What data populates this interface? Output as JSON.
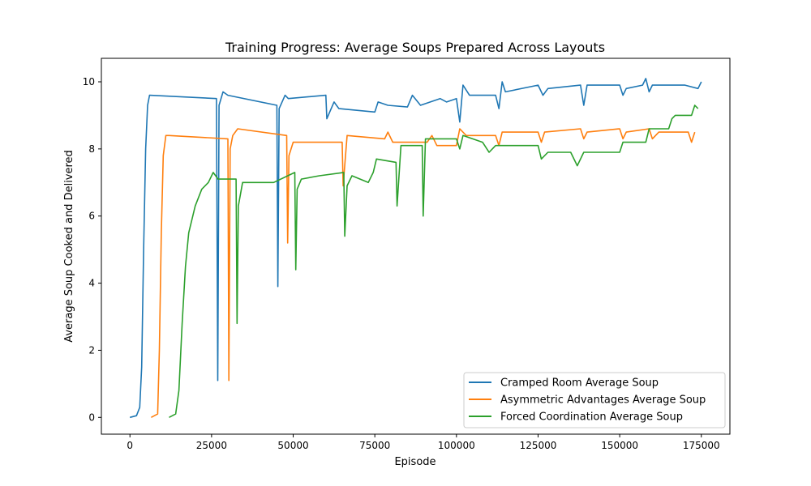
{
  "chart_data": {
    "type": "line",
    "title": "Training Progress: Average Soups Prepared Across Layouts",
    "xlabel": "Episode",
    "ylabel": "Average Soup Cooked and Delivered",
    "xlim": [
      -8750,
      183750
    ],
    "ylim": [
      -0.5,
      10.7
    ],
    "xticks": [
      0,
      25000,
      50000,
      75000,
      100000,
      125000,
      150000,
      175000
    ],
    "xtick_labels": [
      "0",
      "25000",
      "50000",
      "75000",
      "100000",
      "125000",
      "150000",
      "175000"
    ],
    "yticks": [
      0,
      2,
      4,
      6,
      8,
      10
    ],
    "ytick_labels": [
      "0",
      "2",
      "4",
      "6",
      "8",
      "10"
    ],
    "grid": false,
    "legend_position": "lower-right",
    "series": [
      {
        "name": "Cramped Room Average Soup",
        "color": "#1f77b4",
        "points": [
          [
            0,
            0
          ],
          [
            2000,
            0.05
          ],
          [
            3000,
            0.3
          ],
          [
            3600,
            1.5
          ],
          [
            4200,
            5.0
          ],
          [
            4800,
            8.0
          ],
          [
            5400,
            9.3
          ],
          [
            6000,
            9.6
          ],
          [
            26500,
            9.5
          ],
          [
            26900,
            1.1
          ],
          [
            27300,
            9.3
          ],
          [
            28500,
            9.7
          ],
          [
            30000,
            9.6
          ],
          [
            45000,
            9.3
          ],
          [
            45300,
            3.9
          ],
          [
            45700,
            9.2
          ],
          [
            47500,
            9.6
          ],
          [
            48500,
            9.5
          ],
          [
            60000,
            9.6
          ],
          [
            60300,
            8.9
          ],
          [
            62500,
            9.4
          ],
          [
            64000,
            9.2
          ],
          [
            75000,
            9.1
          ],
          [
            76000,
            9.4
          ],
          [
            79000,
            9.3
          ],
          [
            85000,
            9.25
          ],
          [
            86500,
            9.6
          ],
          [
            89000,
            9.3
          ],
          [
            95000,
            9.5
          ],
          [
            97000,
            9.4
          ],
          [
            100000,
            9.5
          ],
          [
            101000,
            8.8
          ],
          [
            102000,
            9.9
          ],
          [
            104000,
            9.6
          ],
          [
            112000,
            9.6
          ],
          [
            113000,
            9.2
          ],
          [
            114000,
            10.0
          ],
          [
            115000,
            9.7
          ],
          [
            125000,
            9.9
          ],
          [
            126500,
            9.6
          ],
          [
            128000,
            9.8
          ],
          [
            138000,
            9.9
          ],
          [
            139000,
            9.3
          ],
          [
            140000,
            9.9
          ],
          [
            150000,
            9.9
          ],
          [
            151000,
            9.6
          ],
          [
            152000,
            9.8
          ],
          [
            157000,
            9.9
          ],
          [
            158000,
            10.1
          ],
          [
            159000,
            9.7
          ],
          [
            160000,
            9.9
          ],
          [
            170000,
            9.9
          ],
          [
            174000,
            9.8
          ],
          [
            175000,
            10.0
          ]
        ]
      },
      {
        "name": "Asymmetric Advantages Average Soup",
        "color": "#ff7f0e",
        "points": [
          [
            6500,
            0
          ],
          [
            8500,
            0.1
          ],
          [
            9000,
            2.0
          ],
          [
            9600,
            5.5
          ],
          [
            10200,
            7.8
          ],
          [
            11000,
            8.4
          ],
          [
            12000,
            8.4
          ],
          [
            30000,
            8.3
          ],
          [
            30300,
            1.1
          ],
          [
            30700,
            8.0
          ],
          [
            31500,
            8.4
          ],
          [
            33000,
            8.6
          ],
          [
            48000,
            8.4
          ],
          [
            48300,
            5.2
          ],
          [
            48700,
            7.8
          ],
          [
            50000,
            8.2
          ],
          [
            65000,
            8.2
          ],
          [
            65300,
            6.9
          ],
          [
            66500,
            8.4
          ],
          [
            78000,
            8.3
          ],
          [
            79000,
            8.5
          ],
          [
            80500,
            8.2
          ],
          [
            91000,
            8.2
          ],
          [
            92500,
            8.4
          ],
          [
            94000,
            8.1
          ],
          [
            100000,
            8.1
          ],
          [
            101000,
            8.6
          ],
          [
            103000,
            8.4
          ],
          [
            112000,
            8.4
          ],
          [
            113000,
            8.1
          ],
          [
            114000,
            8.5
          ],
          [
            125000,
            8.5
          ],
          [
            126000,
            8.2
          ],
          [
            127000,
            8.5
          ],
          [
            138000,
            8.6
          ],
          [
            139000,
            8.3
          ],
          [
            140000,
            8.5
          ],
          [
            150000,
            8.6
          ],
          [
            151000,
            8.3
          ],
          [
            152000,
            8.5
          ],
          [
            159000,
            8.6
          ],
          [
            160000,
            8.3
          ],
          [
            162000,
            8.5
          ],
          [
            171000,
            8.5
          ],
          [
            172000,
            8.2
          ],
          [
            173000,
            8.5
          ]
        ]
      },
      {
        "name": "Forced Coordination Average Soup",
        "color": "#2ca02c",
        "points": [
          [
            12000,
            0
          ],
          [
            14000,
            0.1
          ],
          [
            15000,
            0.8
          ],
          [
            16000,
            2.8
          ],
          [
            17000,
            4.5
          ],
          [
            18000,
            5.5
          ],
          [
            20000,
            6.3
          ],
          [
            22000,
            6.8
          ],
          [
            24000,
            7.0
          ],
          [
            25500,
            7.3
          ],
          [
            27000,
            7.1
          ],
          [
            32500,
            7.1
          ],
          [
            32800,
            2.8
          ],
          [
            33200,
            6.3
          ],
          [
            34500,
            7.0
          ],
          [
            38000,
            7.0
          ],
          [
            44000,
            7.0
          ],
          [
            50500,
            7.3
          ],
          [
            50800,
            4.4
          ],
          [
            51200,
            6.8
          ],
          [
            52500,
            7.1
          ],
          [
            58000,
            7.2
          ],
          [
            65500,
            7.3
          ],
          [
            65800,
            5.4
          ],
          [
            66500,
            6.9
          ],
          [
            68000,
            7.2
          ],
          [
            73000,
            7.0
          ],
          [
            74500,
            7.3
          ],
          [
            75500,
            7.7
          ],
          [
            81500,
            7.6
          ],
          [
            81800,
            6.3
          ],
          [
            83000,
            8.1
          ],
          [
            89500,
            8.1
          ],
          [
            89800,
            6.0
          ],
          [
            90500,
            8.3
          ],
          [
            100000,
            8.3
          ],
          [
            101000,
            8.0
          ],
          [
            102000,
            8.4
          ],
          [
            108000,
            8.2
          ],
          [
            110000,
            7.9
          ],
          [
            112000,
            8.1
          ],
          [
            125000,
            8.1
          ],
          [
            126000,
            7.7
          ],
          [
            128000,
            7.9
          ],
          [
            135000,
            7.9
          ],
          [
            137000,
            7.5
          ],
          [
            139000,
            7.9
          ],
          [
            150000,
            7.9
          ],
          [
            151000,
            8.2
          ],
          [
            158000,
            8.2
          ],
          [
            159000,
            8.6
          ],
          [
            165000,
            8.6
          ],
          [
            166000,
            8.9
          ],
          [
            167000,
            9.0
          ],
          [
            172000,
            9.0
          ],
          [
            173000,
            9.3
          ],
          [
            174000,
            9.2
          ]
        ]
      }
    ]
  }
}
